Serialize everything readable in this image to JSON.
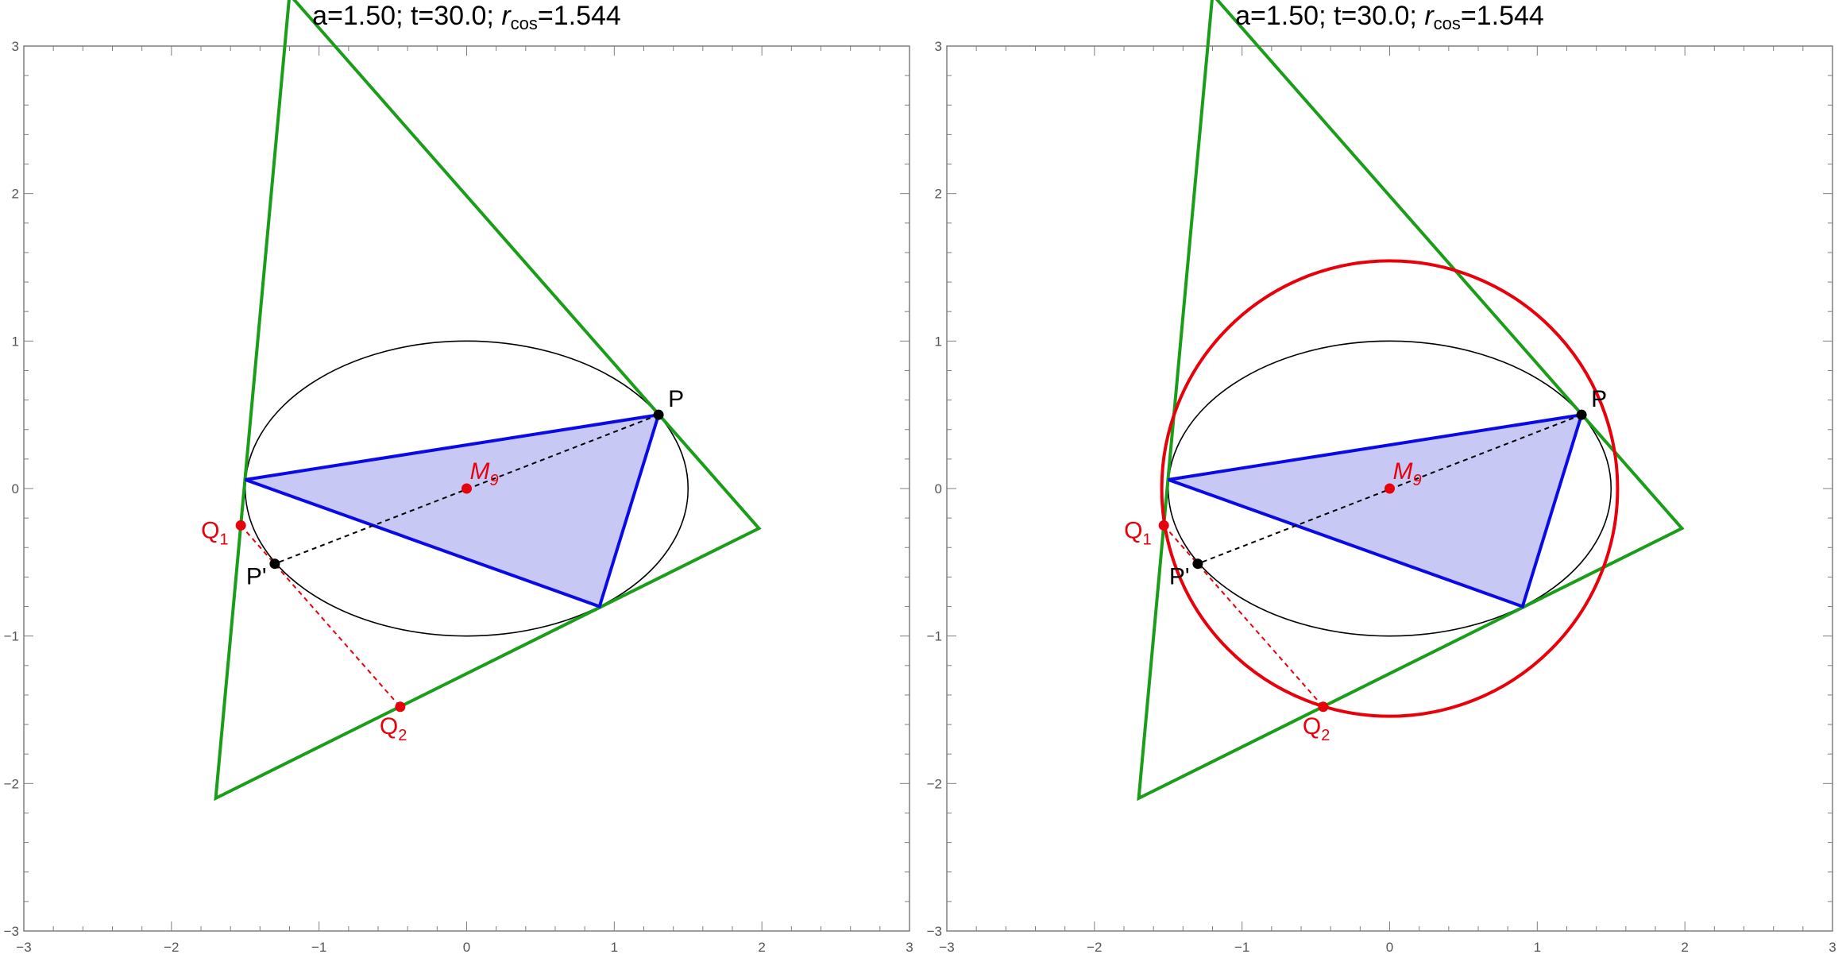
{
  "panels": [
    {
      "title": {
        "a_part": "a=1.50; t=30.0; ",
        "r_symbol": "r",
        "r_sub": "cos",
        "r_value": "=1.544"
      },
      "show_circle": false
    },
    {
      "title": {
        "a_part": "a=1.50; t=30.0; ",
        "r_symbol": "r",
        "r_sub": "cos",
        "r_value": "=1.544"
      },
      "show_circle": true
    }
  ],
  "chart_data": {
    "type": "diagram",
    "xlim": [
      -3,
      3
    ],
    "ylim": [
      -3,
      3
    ],
    "major_ticks": [
      -3,
      -2,
      -1,
      0,
      1,
      2,
      3
    ],
    "tick_labels": [
      "−3",
      "−2",
      "−1",
      "0",
      "1",
      "2",
      "3"
    ],
    "ellipse": {
      "center": [
        0,
        0
      ],
      "rx": 1.5,
      "ry": 1.0
    },
    "circle": {
      "center": [
        0,
        0
      ],
      "r": 1.544
    },
    "green_triangle": [
      [
        -1.7,
        -2.1
      ],
      [
        -1.2,
        3.35
      ],
      [
        1.98,
        -0.27
      ]
    ],
    "blue_triangle": [
      [
        -1.5,
        0.06
      ],
      [
        1.3,
        0.5
      ],
      [
        0.9,
        -0.8
      ]
    ],
    "dashed_black": {
      "from": [
        1.3,
        0.5
      ],
      "to": [
        -1.3,
        -0.51
      ]
    },
    "dashed_red": {
      "from": [
        -1.53,
        -0.25
      ],
      "to": [
        -0.45,
        -1.48
      ]
    },
    "points": [
      {
        "label": "P",
        "x": 1.3,
        "y": 0.5,
        "color": "#000000"
      },
      {
        "label": "P'",
        "x": -1.3,
        "y": -0.51,
        "color": "#000000"
      },
      {
        "label": "M9",
        "x": 0.0,
        "y": 0.0,
        "color": "#e8000b"
      },
      {
        "label": "Q1",
        "x": -1.53,
        "y": -0.25,
        "color": "#e8000b"
      },
      {
        "label": "Q2",
        "x": -0.45,
        "y": -1.48,
        "color": "#e8000b"
      }
    ],
    "labels": {
      "P": "P",
      "Pp": "P'",
      "M_main": "M",
      "M_sub": "9",
      "Q1_main": "Q",
      "Q1_sub": "1",
      "Q2_main": "Q",
      "Q2_sub": "2"
    },
    "colors": {
      "triangle_green": "#1a9e1a",
      "triangle_blue": "#0a0ae6",
      "triangle_fill": "#c8c8f5",
      "circle_red": "#e8000b",
      "ellipse": "#000000",
      "axis": "#7f7f7f"
    }
  }
}
